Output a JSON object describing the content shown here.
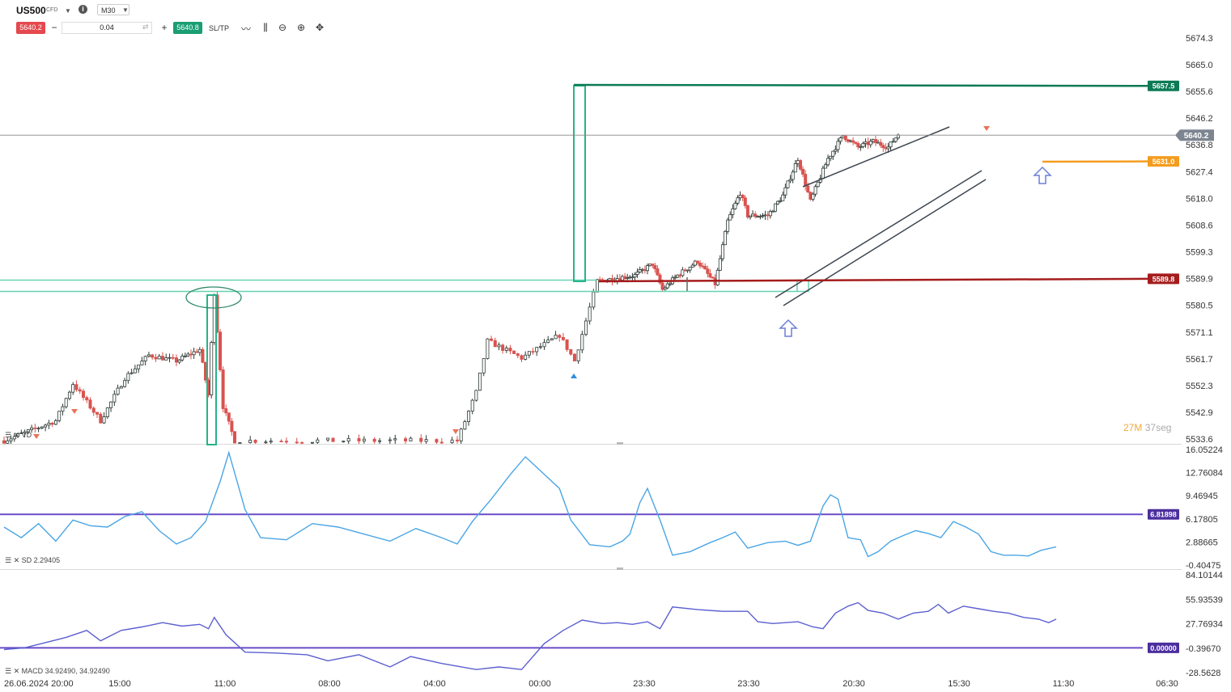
{
  "toolbar": {
    "symbol": "US500",
    "symbol_type": "CFD",
    "timeframe": "M30",
    "sell_price": "5640.2",
    "buy_price": "5640.8",
    "quantity": "0.04",
    "sltp_label": "SL/TP",
    "info_label": "i",
    "minus_label": "−",
    "plus_label": "+",
    "icons": [
      "line-chart-icon",
      "candle-chart-icon",
      "zoom-out-icon",
      "zoom-in-icon",
      "crosshair-icon"
    ]
  },
  "timer": {
    "minutes": "27",
    "minutes_unit": "M",
    "seconds": "37",
    "seconds_unit": "seg"
  },
  "colors": {
    "bull": "#1a8f63",
    "bear": "#d9534f",
    "green_line": "#0b7a55",
    "red_line": "#a51c1c",
    "orange_line": "#f49c1f",
    "purple_line": "#6a4cc7",
    "sd_line": "#4ba6e4",
    "macd_line": "#5b5fd0",
    "zone": "#66d2b2",
    "trend": "#3d4650"
  },
  "chart_data": [
    {
      "type": "candlestick",
      "title": "US500 M30",
      "y_ticks": [
        5674.3,
        5665.0,
        5655.6,
        5646.2,
        5636.8,
        5627.4,
        5618.0,
        5608.6,
        5599.3,
        5589.9,
        5580.5,
        5571.1,
        5561.7,
        5552.3,
        5542.9,
        5533.6
      ],
      "y_tick_labels": [
        "5674.3",
        "5665.0",
        "5655.6",
        "5646.2",
        "5636.8",
        "5627.4",
        "5618.0",
        "5608.6",
        "5599.3",
        "5589.9",
        "5580.5",
        "5571.1",
        "5561.7",
        "5552.3",
        "5542.9",
        "5533.6"
      ],
      "ylim": [
        5533.6,
        5674.3
      ],
      "x_tick_labels": [
        "26.06.2024 20:00",
        "15:00",
        "11:00",
        "08:00",
        "04:00",
        "00:00",
        "23:30",
        "23:30",
        "20:30",
        "15:30",
        "11:30",
        "06:30"
      ],
      "current_price": 5640.2,
      "current_price_label": "5640.2",
      "levels": [
        {
          "name": "resistance",
          "value": 5657.5,
          "label": "5657.5",
          "color": "#0b7a55"
        },
        {
          "name": "stop",
          "value": 5631.0,
          "label": "5631.0",
          "color": "#f49c1f"
        },
        {
          "name": "support",
          "value": 5589.8,
          "label": "5589.8",
          "color": "#a51c1c"
        }
      ],
      "close_path": [
        {
          "bar": 0,
          "close": 5533.0
        },
        {
          "bar": 15,
          "close": 5540.0
        },
        {
          "bar": 20,
          "close": 5553.0
        },
        {
          "bar": 28,
          "close": 5540.0
        },
        {
          "bar": 35,
          "close": 5555.0
        },
        {
          "bar": 42,
          "close": 5563.0
        },
        {
          "bar": 50,
          "close": 5561.0
        },
        {
          "bar": 58,
          "close": 5565.0
        },
        {
          "bar": 61,
          "close": 5549.0
        },
        {
          "bar": 63,
          "close": 5585.0
        },
        {
          "bar": 66,
          "close": 5545.0
        },
        {
          "bar": 70,
          "close": 5533.0
        },
        {
          "bar": 85,
          "close": 5533.0
        },
        {
          "bar": 110,
          "close": 5533.0
        },
        {
          "bar": 113,
          "close": 5533.0
        },
        {
          "bar": 118,
          "close": 5550.0
        },
        {
          "bar": 121,
          "close": 5568.0
        },
        {
          "bar": 130,
          "close": 5562.0
        },
        {
          "bar": 140,
          "close": 5570.0
        },
        {
          "bar": 144,
          "close": 5561.0
        },
        {
          "bar": 150,
          "close": 5589.0
        },
        {
          "bar": 165,
          "close": 5591.0
        },
        {
          "bar": 172,
          "close": 5595.0
        },
        {
          "bar": 176,
          "close": 5586.0
        },
        {
          "bar": 182,
          "close": 5591.0
        },
        {
          "bar": 190,
          "close": 5596.0
        },
        {
          "bar": 197,
          "close": 5588.0
        },
        {
          "bar": 202,
          "close": 5610.0
        },
        {
          "bar": 207,
          "close": 5620.0
        },
        {
          "bar": 210,
          "close": 5612.0
        },
        {
          "bar": 218,
          "close": 5612.0
        },
        {
          "bar": 224,
          "close": 5619.0
        },
        {
          "bar": 230,
          "close": 5632.0
        },
        {
          "bar": 235,
          "close": 5617.0
        },
        {
          "bar": 242,
          "close": 5632.0
        },
        {
          "bar": 248,
          "close": 5640.0
        },
        {
          "bar": 254,
          "close": 5636.0
        },
        {
          "bar": 260,
          "close": 5638.0
        },
        {
          "bar": 266,
          "close": 5636.0
        },
        {
          "bar": 270,
          "close": 5640.5
        }
      ],
      "annotations": [
        "rising-channel",
        "up-arrow-5582",
        "up-arrow-5628",
        "zone-5588"
      ]
    },
    {
      "type": "line",
      "name": "SD 2.29405",
      "label": "SD 2.29405",
      "y_tick_labels": [
        "16.05224",
        "12.76084",
        "9.46945",
        "6.17805",
        "2.88665",
        "-0.40475"
      ],
      "ylim": [
        -0.40475,
        16.05224
      ],
      "level": 6.81898,
      "level_label": "6.81898",
      "series": [
        {
          "bar": 0,
          "value": 5.0
        },
        {
          "bar": 5,
          "value": 3.5
        },
        {
          "bar": 10,
          "value": 5.5
        },
        {
          "bar": 15,
          "value": 3.0
        },
        {
          "bar": 20,
          "value": 6.0
        },
        {
          "bar": 25,
          "value": 5.2
        },
        {
          "bar": 30,
          "value": 5.0
        },
        {
          "bar": 35,
          "value": 6.5
        },
        {
          "bar": 40,
          "value": 7.2
        },
        {
          "bar": 45,
          "value": 4.5
        },
        {
          "bar": 50,
          "value": 2.6
        },
        {
          "bar": 55,
          "value": 3.5
        },
        {
          "bar": 60,
          "value": 5.8
        },
        {
          "bar": 65,
          "value": 11.5
        },
        {
          "bar": 68,
          "value": 15.6
        },
        {
          "bar": 72,
          "value": 7.5
        },
        {
          "bar": 75,
          "value": 3.5
        },
        {
          "bar": 80,
          "value": 3.2
        },
        {
          "bar": 85,
          "value": 5.5
        },
        {
          "bar": 90,
          "value": 5.0
        },
        {
          "bar": 95,
          "value": 4.0
        },
        {
          "bar": 100,
          "value": 3.0
        },
        {
          "bar": 105,
          "value": 4.8
        },
        {
          "bar": 110,
          "value": 3.5
        },
        {
          "bar": 113,
          "value": 2.6
        },
        {
          "bar": 117,
          "value": 5.8
        },
        {
          "bar": 122,
          "value": 9.0
        },
        {
          "bar": 127,
          "value": 12.5
        },
        {
          "bar": 131,
          "value": 15.0
        },
        {
          "bar": 135,
          "value": 13.0
        },
        {
          "bar": 140,
          "value": 10.5
        },
        {
          "bar": 143,
          "value": 6.0
        },
        {
          "bar": 148,
          "value": 2.5
        },
        {
          "bar": 155,
          "value": 2.2
        },
        {
          "bar": 160,
          "value": 3.0
        },
        {
          "bar": 163,
          "value": 4.0
        },
        {
          "bar": 167,
          "value": 8.5
        },
        {
          "bar": 170,
          "value": 10.5
        },
        {
          "bar": 175,
          "value": 6.0
        },
        {
          "bar": 180,
          "value": 1.0
        },
        {
          "bar": 187,
          "value": 1.5
        },
        {
          "bar": 195,
          "value": 2.8
        },
        {
          "bar": 200,
          "value": 3.5
        },
        {
          "bar": 205,
          "value": 4.3
        },
        {
          "bar": 210,
          "value": 2.0
        },
        {
          "bar": 218,
          "value": 2.8
        },
        {
          "bar": 225,
          "value": 3.0
        },
        {
          "bar": 230,
          "value": 2.4
        },
        {
          "bar": 235,
          "value": 3.0
        },
        {
          "bar": 240,
          "value": 8.0
        },
        {
          "bar": 243,
          "value": 9.6
        },
        {
          "bar": 246,
          "value": 9.0
        },
        {
          "bar": 250,
          "value": 3.5
        },
        {
          "bar": 255,
          "value": 3.2
        },
        {
          "bar": 258,
          "value": 0.8
        },
        {
          "bar": 262,
          "value": 1.5
        },
        {
          "bar": 267,
          "value": 3.0
        },
        {
          "bar": 272,
          "value": 3.8
        },
        {
          "bar": 277,
          "value": 4.5
        },
        {
          "bar": 282,
          "value": 4.1
        },
        {
          "bar": 287,
          "value": 3.5
        },
        {
          "bar": 292,
          "value": 5.8
        },
        {
          "bar": 297,
          "value": 5.0
        },
        {
          "bar": 302,
          "value": 4.0
        },
        {
          "bar": 307,
          "value": 1.5
        },
        {
          "bar": 312,
          "value": 1.0
        },
        {
          "bar": 317,
          "value": 1.0
        },
        {
          "bar": 322,
          "value": 0.9
        },
        {
          "bar": 327,
          "value": 1.7
        },
        {
          "bar": 333,
          "value": 2.2
        }
      ]
    },
    {
      "type": "line",
      "name": "MACD 34.92490, 34.92490",
      "label": "MACD 34.92490, 34.92490",
      "y_tick_labels": [
        "84.10144",
        "55.93539",
        "27.76934",
        "-0.39670",
        "-28.5628"
      ],
      "ylim": [
        -28.5628,
        84.10144
      ],
      "level": 0.0,
      "level_label": "0.00000",
      "series": [
        {
          "bar": 0,
          "value": -2.0
        },
        {
          "bar": 6,
          "value": 0.0
        },
        {
          "bar": 12,
          "value": 6.0
        },
        {
          "bar": 18,
          "value": 12.0
        },
        {
          "bar": 24,
          "value": 20.0
        },
        {
          "bar": 28,
          "value": 8.0
        },
        {
          "bar": 34,
          "value": 20.0
        },
        {
          "bar": 40,
          "value": 24.0
        },
        {
          "bar": 46,
          "value": 29.0
        },
        {
          "bar": 52,
          "value": 25.0
        },
        {
          "bar": 58,
          "value": 27.0
        },
        {
          "bar": 61,
          "value": 22.0
        },
        {
          "bar": 63,
          "value": 35.0
        },
        {
          "bar": 67,
          "value": 15.0
        },
        {
          "bar": 72,
          "value": -5.0
        },
        {
          "bar": 78,
          "value": -6.0
        },
        {
          "bar": 84,
          "value": -8.0
        },
        {
          "bar": 88,
          "value": -15.0
        },
        {
          "bar": 94,
          "value": -8.0
        },
        {
          "bar": 100,
          "value": -22.0
        },
        {
          "bar": 104,
          "value": -10.0
        },
        {
          "bar": 110,
          "value": -18.0
        },
        {
          "bar": 118,
          "value": -25.0
        },
        {
          "bar": 124,
          "value": -22.0
        },
        {
          "bar": 130,
          "value": -25.0
        },
        {
          "bar": 136,
          "value": 5.0
        },
        {
          "bar": 141,
          "value": 20.0
        },
        {
          "bar": 146,
          "value": 32.0
        },
        {
          "bar": 152,
          "value": 28.0
        },
        {
          "bar": 158,
          "value": 29.0
        },
        {
          "bar": 164,
          "value": 27.0
        },
        {
          "bar": 170,
          "value": 30.0
        },
        {
          "bar": 175,
          "value": 22.0
        },
        {
          "bar": 180,
          "value": 47.0
        },
        {
          "bar": 190,
          "value": 44.0
        },
        {
          "bar": 200,
          "value": 42.0
        },
        {
          "bar": 210,
          "value": 42.0
        },
        {
          "bar": 214,
          "value": 30.0
        },
        {
          "bar": 220,
          "value": 28.0
        },
        {
          "bar": 230,
          "value": 30.0
        },
        {
          "bar": 236,
          "value": 24.0
        },
        {
          "bar": 240,
          "value": 22.0
        },
        {
          "bar": 245,
          "value": 40.0
        },
        {
          "bar": 250,
          "value": 48.0
        },
        {
          "bar": 254,
          "value": 52.0
        },
        {
          "bar": 258,
          "value": 43.0
        },
        {
          "bar": 264,
          "value": 40.0
        },
        {
          "bar": 270,
          "value": 33.0
        },
        {
          "bar": 276,
          "value": 40.0
        },
        {
          "bar": 282,
          "value": 42.0
        },
        {
          "bar": 286,
          "value": 50.0
        },
        {
          "bar": 290,
          "value": 40.0
        },
        {
          "bar": 296,
          "value": 48.0
        },
        {
          "bar": 302,
          "value": 45.0
        },
        {
          "bar": 308,
          "value": 42.0
        },
        {
          "bar": 314,
          "value": 40.0
        },
        {
          "bar": 320,
          "value": 35.0
        },
        {
          "bar": 326,
          "value": 33.0
        },
        {
          "bar": 330,
          "value": 29.0
        },
        {
          "bar": 333,
          "value": 33.0
        }
      ]
    }
  ]
}
